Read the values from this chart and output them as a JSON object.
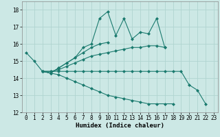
{
  "xlabel": "Humidex (Indice chaleur)",
  "bg_color": "#cce8e5",
  "grid_color": "#b0d4d0",
  "line_color": "#1a7a6e",
  "xlim": [
    -0.5,
    23.5
  ],
  "ylim": [
    12,
    18.5
  ],
  "yticks": [
    12,
    13,
    14,
    15,
    16,
    17,
    18
  ],
  "xticks": [
    0,
    1,
    2,
    3,
    4,
    5,
    6,
    7,
    8,
    9,
    10,
    11,
    12,
    13,
    14,
    15,
    16,
    17,
    18,
    19,
    20,
    21,
    22,
    23
  ],
  "series": [
    {
      "x": [
        0,
        1,
        2,
        3,
        4,
        5,
        6,
        7,
        8,
        9,
        10,
        11,
        12,
        13,
        14,
        15,
        16,
        17,
        18
      ],
      "y": [
        15.5,
        15.0,
        14.4,
        14.3,
        14.6,
        14.9,
        15.2,
        15.8,
        16.0,
        17.5,
        17.9,
        16.5,
        17.5,
        16.3,
        16.7,
        16.6,
        17.5,
        15.8,
        null
      ]
    },
    {
      "x": [
        2,
        3,
        4,
        5,
        6,
        7,
        8,
        9,
        10,
        11
      ],
      "y": [
        14.4,
        14.3,
        14.6,
        14.9,
        15.2,
        15.5,
        15.8,
        16.0,
        16.1,
        null
      ]
    },
    {
      "x": [
        2,
        3,
        4,
        5,
        6,
        7,
        8,
        9,
        10,
        11,
        12,
        13,
        14,
        15,
        16,
        17,
        18
      ],
      "y": [
        14.4,
        14.4,
        14.5,
        14.7,
        14.9,
        15.1,
        15.3,
        15.4,
        15.5,
        15.6,
        15.7,
        15.8,
        15.8,
        15.9,
        15.9,
        15.8,
        null
      ]
    },
    {
      "x": [
        2,
        3,
        4,
        5,
        6,
        7,
        8,
        9,
        10,
        11,
        12,
        13,
        14,
        15,
        16,
        17,
        18,
        19,
        20,
        21,
        22
      ],
      "y": [
        14.4,
        14.4,
        14.4,
        14.4,
        14.4,
        14.4,
        14.4,
        14.4,
        14.4,
        14.4,
        14.4,
        14.4,
        14.4,
        14.4,
        14.4,
        14.4,
        14.4,
        14.4,
        13.6,
        13.3,
        12.5
      ]
    },
    {
      "x": [
        2,
        3,
        4,
        5,
        6,
        7,
        8,
        9,
        10,
        11,
        12,
        13,
        14,
        15,
        16,
        17,
        18,
        19,
        20,
        21,
        22
      ],
      "y": [
        14.4,
        14.3,
        14.2,
        14.0,
        13.8,
        13.6,
        13.4,
        13.2,
        13.0,
        12.9,
        12.8,
        12.7,
        12.6,
        12.5,
        12.5,
        12.5,
        12.5,
        null,
        null,
        null,
        null
      ]
    }
  ]
}
